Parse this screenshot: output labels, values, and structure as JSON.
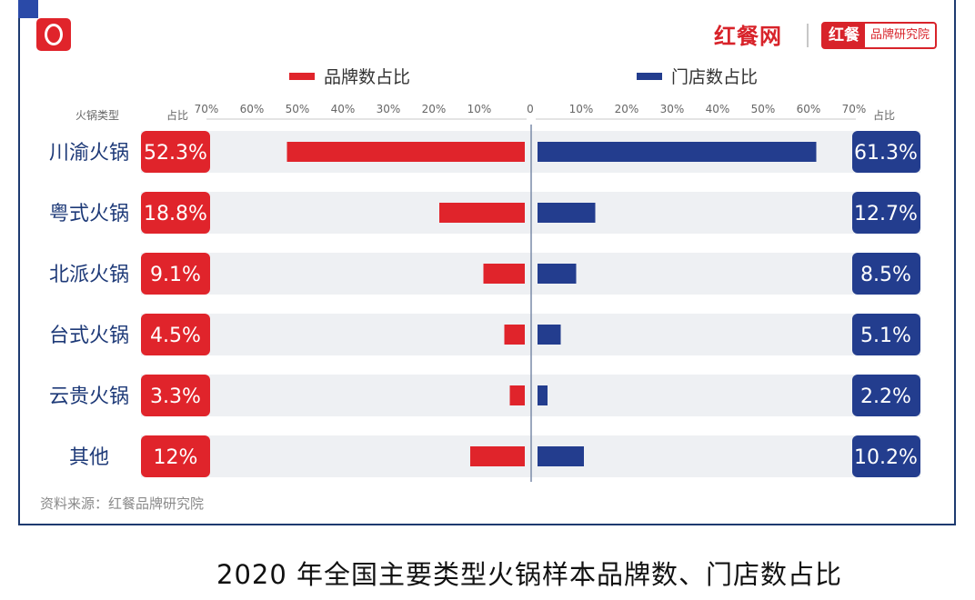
{
  "brand": {
    "name": "红餐网",
    "badge_main": "红餐",
    "badge_sub": "品牌研究院"
  },
  "source": "资料来源：红餐品牌研究院",
  "caption": "2020 年全国主要类型火锅样本品牌数、门店数占比",
  "colors": {
    "brand_red": "#e0242b",
    "store_blue": "#233d8e",
    "row_bg": "#eef0f3",
    "label_blue": "#1e3a78"
  },
  "chart_data": {
    "type": "bar",
    "orientation": "horizontal-butterfly",
    "row_header": "火锅类型",
    "value_header": "占比",
    "categories": [
      "川渝火锅",
      "粤式火锅",
      "北派火锅",
      "台式火锅",
      "云贵火锅",
      "其他"
    ],
    "series": [
      {
        "name": "品牌数占比",
        "values": [
          52.3,
          18.8,
          9.1,
          4.5,
          3.3,
          12
        ],
        "labels": [
          "52.3%",
          "18.8%",
          "9.1%",
          "4.5%",
          "3.3%",
          "12%"
        ],
        "color": "#e0242b",
        "side": "left"
      },
      {
        "name": "门店数占比",
        "values": [
          61.3,
          12.7,
          8.5,
          5.1,
          2.2,
          10.2
        ],
        "labels": [
          "61.3%",
          "12.7%",
          "8.5%",
          "5.1%",
          "2.2%",
          "10.2%"
        ],
        "color": "#233d8e",
        "side": "right"
      }
    ],
    "left_ticks": [
      "70%",
      "60%",
      "50%",
      "40%",
      "30%",
      "20%",
      "10%",
      "0"
    ],
    "right_ticks": [
      "10%",
      "20%",
      "30%",
      "40%",
      "50%",
      "60%",
      "70%"
    ],
    "xlim": [
      0,
      70
    ],
    "legend": "top",
    "grid": false
  }
}
